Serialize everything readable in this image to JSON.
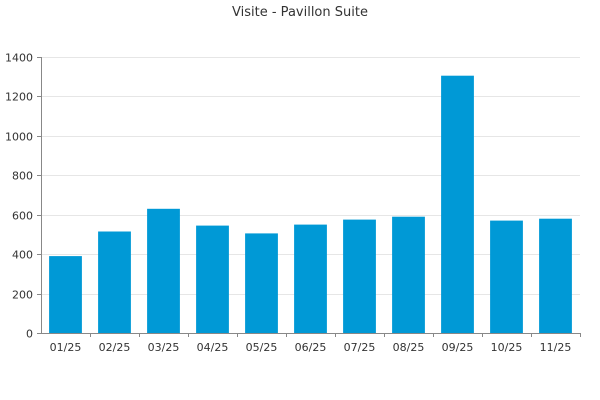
{
  "chart_data": {
    "type": "bar",
    "title": "Visite - Pavillon Suite",
    "xlabel": "",
    "ylabel": "",
    "categories": [
      "01/25",
      "02/25",
      "03/25",
      "04/25",
      "05/25",
      "06/25",
      "07/25",
      "08/25",
      "09/25",
      "10/25",
      "11/25"
    ],
    "values": [
      390,
      515,
      630,
      545,
      505,
      550,
      575,
      590,
      1305,
      570,
      580
    ],
    "ylim": [
      0,
      1400
    ],
    "yticks": [
      0,
      200,
      400,
      600,
      800,
      1000,
      1200,
      1400
    ],
    "grid": true,
    "legend": "none",
    "bar_color": "#0099d6"
  }
}
